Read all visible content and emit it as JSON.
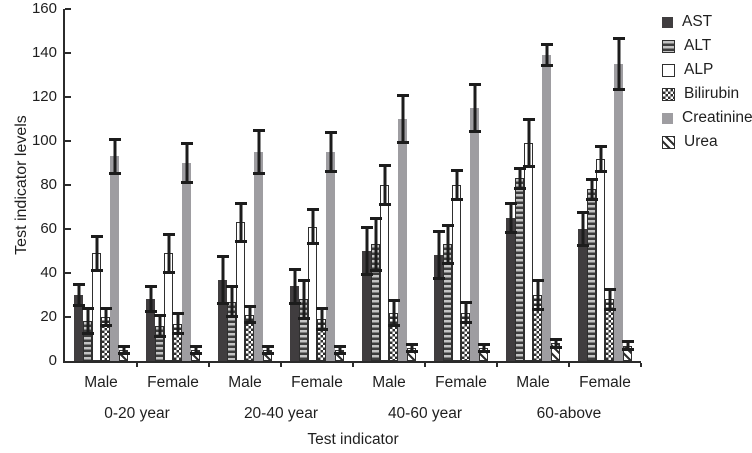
{
  "chart_data": {
    "type": "bar",
    "title": "",
    "ylabel": "Test indicator levels",
    "xlabel": "Test indicator",
    "ylim": [
      0,
      160
    ],
    "yticks": [
      0,
      20,
      40,
      60,
      80,
      100,
      120,
      140,
      160
    ],
    "grid": false,
    "legend_position": "top-right",
    "error_bar_color": "#1c1c1c",
    "axis_color": "#2b2b2b",
    "group_labels": [
      "Male",
      "Female",
      "Male",
      "Female",
      "Male",
      "Female",
      "Male",
      "Female"
    ],
    "age_groups": [
      {
        "label": "0-20 year"
      },
      {
        "label": "20-40 year"
      },
      {
        "label": "40-60 year"
      },
      {
        "label": "60-above"
      }
    ],
    "series": [
      {
        "name": "AST",
        "pattern": "solid-dark",
        "color": "#403d3f",
        "values": [
          30,
          28,
          37,
          34,
          50,
          48,
          65,
          60
        ],
        "errors": [
          4,
          5,
          10,
          7,
          10,
          10,
          6,
          7
        ]
      },
      {
        "name": "ALT",
        "pattern": "h-stripes",
        "values": [
          18,
          16,
          27,
          28,
          53,
          53,
          83,
          78
        ],
        "errors": [
          5,
          4,
          6,
          8,
          11,
          8,
          4,
          4
        ]
      },
      {
        "name": "ALP",
        "pattern": "open",
        "values": [
          49,
          49,
          63,
          61,
          80,
          80,
          99,
          92
        ],
        "errors": [
          7,
          8,
          8,
          7,
          8,
          6,
          10,
          5
        ]
      },
      {
        "name": "Bilirubin",
        "pattern": "checker",
        "values": [
          20,
          17,
          21,
          19,
          22,
          22,
          30,
          28
        ],
        "errors": [
          3,
          4,
          3,
          4,
          5,
          4,
          6,
          4
        ]
      },
      {
        "name": "Creatinine",
        "pattern": "solid-gray",
        "color": "#9e9da1",
        "values": [
          93,
          90,
          95,
          95,
          110,
          115,
          139,
          135
        ],
        "errors": [
          7,
          8,
          9,
          8,
          10,
          10,
          4,
          11
        ]
      },
      {
        "name": "Urea",
        "pattern": "diagonal",
        "values": [
          5,
          5,
          5,
          5,
          6,
          6,
          8,
          7
        ],
        "errors": [
          1,
          1,
          1,
          1,
          1,
          1,
          1,
          1
        ]
      }
    ]
  }
}
